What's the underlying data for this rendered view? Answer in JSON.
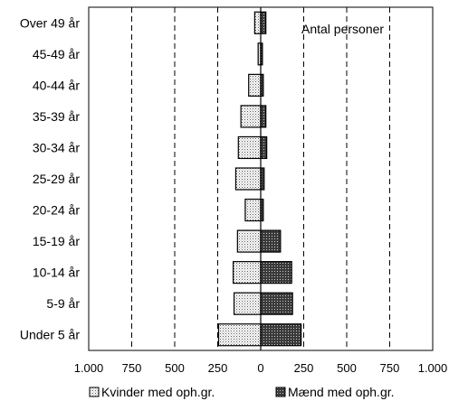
{
  "chart_data": {
    "type": "bar",
    "orientation": "horizontal-population-pyramid",
    "annotation": "Antal personer",
    "categories": [
      "Over 49 år",
      "45-49 år",
      "40-44 år",
      "35-39 år",
      "30-34 år",
      "25-29 år",
      "20-24 år",
      "15-19 år",
      "10-14 år",
      "5-9 år",
      "Under 5 år"
    ],
    "series": [
      {
        "name": "Kvinder med oph.gr.",
        "side": "left",
        "pattern": "light-dots",
        "values": [
          35,
          15,
          70,
          115,
          130,
          145,
          90,
          135,
          160,
          155,
          245
        ]
      },
      {
        "name": "Mænd med oph.gr.",
        "side": "right",
        "pattern": "dark-dots",
        "values": [
          30,
          10,
          15,
          30,
          35,
          20,
          15,
          115,
          180,
          185,
          235
        ]
      }
    ],
    "x_ticks": [
      "1.000",
      "750",
      "500",
      "250",
      "0",
      "250",
      "500",
      "750",
      "1.000"
    ],
    "xlim": [
      -1000,
      1000
    ],
    "grid": "vertical-dashed",
    "legend_position": "bottom"
  }
}
